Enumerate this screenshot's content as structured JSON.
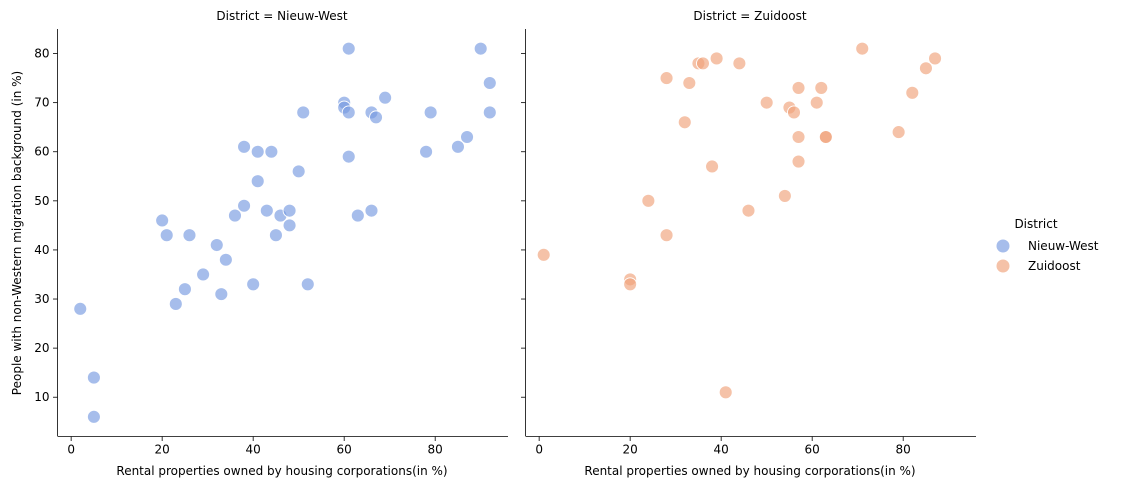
{
  "chart_data": {
    "type": "scatter",
    "ylabel": "People with non-Western migration background (in %)",
    "xlabel": "Rental properties owned by housing corporations(in %)",
    "xlim": [
      -3,
      96
    ],
    "ylim": [
      2,
      85
    ],
    "x_ticks": [
      0,
      20,
      40,
      60,
      80
    ],
    "y_ticks": [
      10,
      20,
      30,
      40,
      50,
      60,
      70,
      80
    ],
    "grid": false,
    "legend": {
      "title": "District",
      "placement": "right",
      "items": [
        "Nieuw-West",
        "Zuidoost"
      ]
    },
    "colors": {
      "Nieuw-West": "#7799e0",
      "Zuidoost": "#f0a27a"
    },
    "panels": [
      {
        "title": "District = Nieuw-West",
        "series": "Nieuw-West",
        "points": [
          [
            2,
            28
          ],
          [
            5,
            14
          ],
          [
            5,
            6
          ],
          [
            20,
            46
          ],
          [
            21,
            43
          ],
          [
            23,
            29
          ],
          [
            25,
            32
          ],
          [
            26,
            43
          ],
          [
            29,
            35
          ],
          [
            32,
            41
          ],
          [
            33,
            31
          ],
          [
            34,
            38
          ],
          [
            36,
            47
          ],
          [
            38,
            49
          ],
          [
            38,
            61
          ],
          [
            40,
            33
          ],
          [
            41,
            54
          ],
          [
            41,
            60
          ],
          [
            43,
            48
          ],
          [
            44,
            60
          ],
          [
            45,
            43
          ],
          [
            46,
            47
          ],
          [
            48,
            45
          ],
          [
            48,
            48
          ],
          [
            50,
            56
          ],
          [
            51,
            68
          ],
          [
            52,
            33
          ],
          [
            60,
            70
          ],
          [
            60,
            69
          ],
          [
            61,
            81
          ],
          [
            61,
            68
          ],
          [
            61,
            59
          ],
          [
            63,
            47
          ],
          [
            66,
            68
          ],
          [
            66,
            48
          ],
          [
            67,
            67
          ],
          [
            69,
            71
          ],
          [
            78,
            60
          ],
          [
            79,
            68
          ],
          [
            85,
            61
          ],
          [
            87,
            63
          ],
          [
            90,
            81
          ],
          [
            92,
            74
          ],
          [
            92,
            68
          ]
        ]
      },
      {
        "title": "District = Zuidoost",
        "series": "Zuidoost",
        "points": [
          [
            1,
            39
          ],
          [
            20,
            34
          ],
          [
            20,
            33
          ],
          [
            24,
            50
          ],
          [
            28,
            75
          ],
          [
            28,
            43
          ],
          [
            32,
            66
          ],
          [
            33,
            74
          ],
          [
            35,
            78
          ],
          [
            36,
            78
          ],
          [
            38,
            57
          ],
          [
            39,
            79
          ],
          [
            41,
            11
          ],
          [
            44,
            78
          ],
          [
            46,
            48
          ],
          [
            50,
            70
          ],
          [
            54,
            51
          ],
          [
            55,
            69
          ],
          [
            56,
            68
          ],
          [
            57,
            73
          ],
          [
            57,
            63
          ],
          [
            57,
            58
          ],
          [
            61,
            70
          ],
          [
            62,
            73
          ],
          [
            63,
            63
          ],
          [
            63,
            63
          ],
          [
            71,
            81
          ],
          [
            79,
            64
          ],
          [
            82,
            72
          ],
          [
            85,
            77
          ],
          [
            87,
            79
          ]
        ]
      }
    ]
  }
}
